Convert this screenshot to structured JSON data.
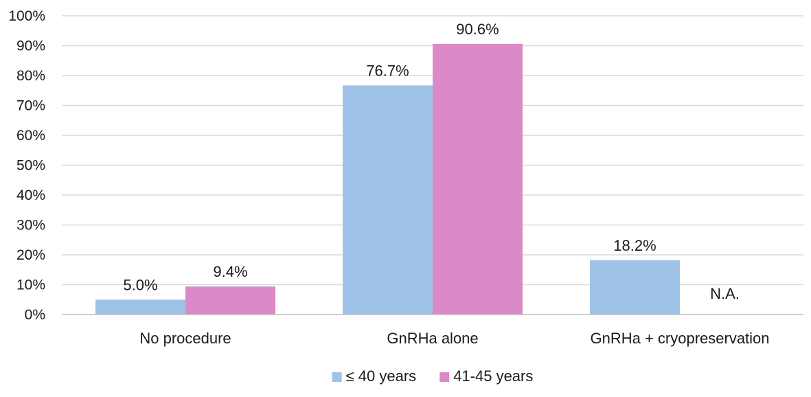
{
  "chart_data": {
    "type": "bar",
    "categories": [
      "No procedure",
      "GnRHa alone",
      "GnRHa + cryopreservation"
    ],
    "series": [
      {
        "name": "≤ 40 years",
        "color": "#9fc2e7",
        "values": [
          5.0,
          76.7,
          18.2
        ],
        "labels": [
          "5.0%",
          "76.7%",
          "18.2%"
        ]
      },
      {
        "name": "41-45 years",
        "color": "#db8ac7",
        "values": [
          9.4,
          90.6,
          null
        ],
        "labels": [
          "9.4%",
          "90.6%",
          "N.A."
        ]
      }
    ],
    "ylim": [
      0,
      100
    ],
    "yticks": [
      0,
      10,
      20,
      30,
      40,
      50,
      60,
      70,
      80,
      90,
      100
    ],
    "ytick_labels": [
      "0%",
      "10%",
      "20%",
      "30%",
      "40%",
      "50%",
      "60%",
      "70%",
      "80%",
      "90%",
      "100%"
    ],
    "grid": true,
    "legend_position": "bottom"
  }
}
